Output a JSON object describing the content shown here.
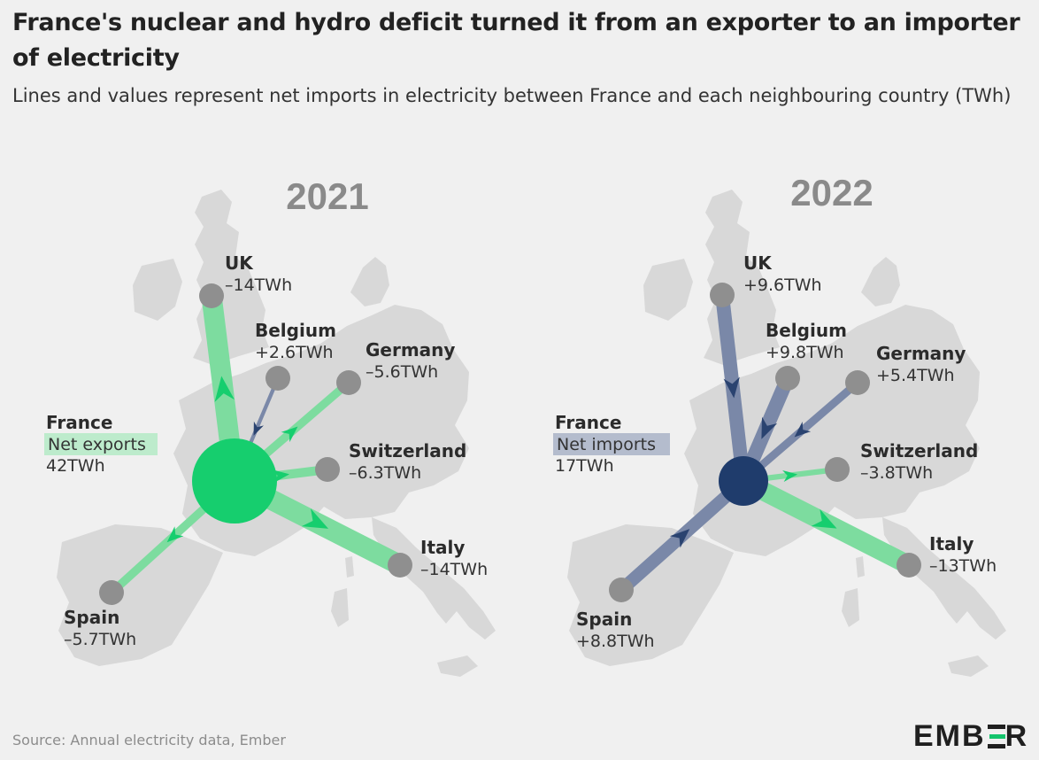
{
  "title": "France's nuclear and hydro deficit turned it from an exporter to an importer of electricity",
  "subtitle": "Lines and values represent net imports in electricity between France and each neighbouring country (TWh)",
  "source": "Source: Annual electricity data, Ember",
  "logo": "EMBER",
  "colors": {
    "export_green": "#7ddc9f",
    "france_export": "#16ce6e",
    "import_blue": "#7a88a8",
    "france_import": "#1f3c6c",
    "country_dot": "#8f8f8f",
    "land": "#d8d8d8"
  },
  "maps": [
    {
      "year": "2021",
      "france": {
        "name": "France",
        "status": "Net exports",
        "value": "42TWh"
      },
      "links": [
        {
          "country": "UK",
          "value": "–14TWh",
          "twh": -14
        },
        {
          "country": "Belgium",
          "value": "+2.6TWh",
          "twh": 2.6
        },
        {
          "country": "Germany",
          "value": "–5.6TWh",
          "twh": -5.6
        },
        {
          "country": "Switzerland",
          "value": "–6.3TWh",
          "twh": -6.3
        },
        {
          "country": "Italy",
          "value": "–14TWh",
          "twh": -14
        },
        {
          "country": "Spain",
          "value": "–5.7TWh",
          "twh": -5.7
        }
      ]
    },
    {
      "year": "2022",
      "france": {
        "name": "France",
        "status": "Net imports",
        "value": "17TWh"
      },
      "links": [
        {
          "country": "UK",
          "value": "+9.6TWh",
          "twh": 9.6
        },
        {
          "country": "Belgium",
          "value": "+9.8TWh",
          "twh": 9.8
        },
        {
          "country": "Germany",
          "value": "+5.4TWh",
          "twh": 5.4
        },
        {
          "country": "Switzerland",
          "value": "–3.8TWh",
          "twh": -3.8
        },
        {
          "country": "Italy",
          "value": "–13TWh",
          "twh": -13
        },
        {
          "country": "Spain",
          "value": "+8.8TWh",
          "twh": 8.8
        }
      ]
    }
  ]
}
